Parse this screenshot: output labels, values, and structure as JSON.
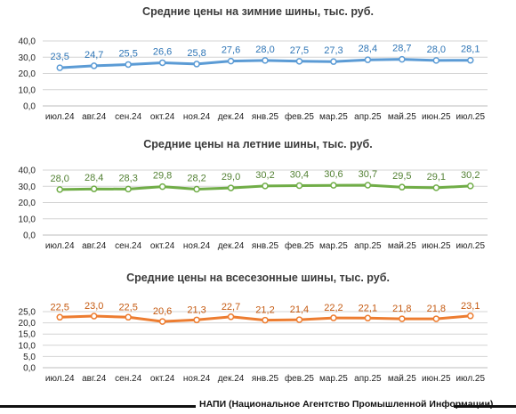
{
  "chart_data": [
    {
      "type": "line",
      "title": "Средние цены на зимние шины, тыс. руб.",
      "categories": [
        "июл.24",
        "авг.24",
        "сен.24",
        "окт.24",
        "ноя.24",
        "дек.24",
        "янв.25",
        "фев.25",
        "мар.25",
        "апр.25",
        "май.25",
        "июн.25",
        "июл.25"
      ],
      "values": [
        23.5,
        24.7,
        25.5,
        26.6,
        25.8,
        27.6,
        28.0,
        27.5,
        27.3,
        28.4,
        28.7,
        28.0,
        28.1
      ],
      "data_labels": [
        "23,5",
        "24,7",
        "25,5",
        "26,6",
        "25,8",
        "27,6",
        "28,0",
        "27,5",
        "27,3",
        "28,4",
        "28,7",
        "28,0",
        "28,1"
      ],
      "y_ticks": [
        "0,0",
        "10,0",
        "20,0",
        "30,0",
        "40,0"
      ],
      "ylim": [
        0,
        40
      ],
      "grid": true,
      "color": "#5b9bd5",
      "label_color": "#2e75b6"
    },
    {
      "type": "line",
      "title": "Средние цены на летние шины, тыс. руб.",
      "categories": [
        "июл.24",
        "авг.24",
        "сен.24",
        "окт.24",
        "ноя.24",
        "дек.24",
        "янв.25",
        "фев.25",
        "мар.25",
        "апр.25",
        "май.25",
        "июн.25",
        "июл.25"
      ],
      "values": [
        28.0,
        28.4,
        28.3,
        29.8,
        28.2,
        29.0,
        30.2,
        30.4,
        30.6,
        30.7,
        29.5,
        29.1,
        30.2
      ],
      "data_labels": [
        "28,0",
        "28,4",
        "28,3",
        "29,8",
        "28,2",
        "29,0",
        "30,2",
        "30,4",
        "30,6",
        "30,7",
        "29,5",
        "29,1",
        "30,2"
      ],
      "y_ticks": [
        "0,0",
        "10,0",
        "20,0",
        "30,0",
        "40,0"
      ],
      "ylim": [
        0,
        40
      ],
      "grid": true,
      "color": "#70ad47",
      "label_color": "#548235"
    },
    {
      "type": "line",
      "title": "Средние цены на всесезонные шины, тыс. руб.",
      "categories": [
        "июл.24",
        "авг.24",
        "сен.24",
        "окт.24",
        "ноя.24",
        "дек.24",
        "янв.25",
        "фев.25",
        "мар.25",
        "апр.25",
        "май.25",
        "июн.25",
        "июл.25"
      ],
      "values": [
        22.5,
        23.0,
        22.5,
        20.6,
        21.3,
        22.7,
        21.2,
        21.4,
        22.2,
        22.1,
        21.8,
        21.8,
        23.1
      ],
      "data_labels": [
        "22,5",
        "23,0",
        "22,5",
        "20,6",
        "21,3",
        "22,7",
        "21,2",
        "21,4",
        "22,2",
        "22,1",
        "21,8",
        "21,8",
        "23,1"
      ],
      "y_ticks": [
        "0,0",
        "5,0",
        "10,0",
        "15,0",
        "20,0",
        "25,0"
      ],
      "ylim": [
        0,
        25
      ],
      "grid": true,
      "color": "#ed7d31",
      "label_color": "#c55a11"
    }
  ],
  "source": "НАПИ (Национальное Агентство Промышленной Информации)"
}
